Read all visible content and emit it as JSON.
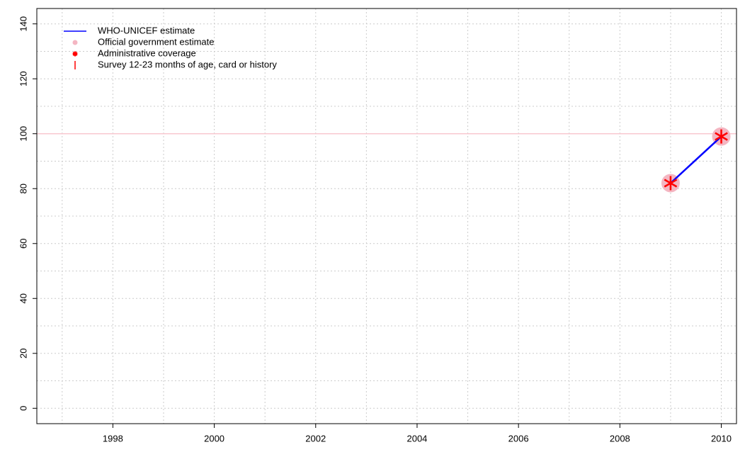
{
  "chart_data": {
    "type": "line",
    "x": [
      2009,
      2010
    ],
    "series": [
      {
        "name": "WHO-UNICEF estimate",
        "color": "#0000ff",
        "marker": "line",
        "values": [
          82,
          99
        ]
      },
      {
        "name": "Official government estimate",
        "color": "#f4b6c2",
        "marker": "circle",
        "values": [
          82,
          99
        ]
      },
      {
        "name": "Administrative coverage",
        "color": "#ff0000",
        "marker": "asterisk",
        "values": [
          82,
          99
        ]
      },
      {
        "name": "Survey 12-23 months of age, card or history",
        "color": "#ff0000",
        "marker": "bar",
        "values": [
          null,
          null
        ]
      }
    ],
    "hline": {
      "value": 100,
      "color": "#f8c8d0"
    },
    "xlim": [
      1996.5,
      2010.3
    ],
    "xticks": [
      1998,
      2000,
      2002,
      2004,
      2006,
      2008,
      2010
    ],
    "ylim": [
      -5.6,
      145.6
    ],
    "yticks": [
      0,
      20,
      40,
      60,
      80,
      100,
      120,
      140
    ],
    "x_gridlines": [
      1997,
      1998,
      1999,
      2000,
      2001,
      2002,
      2003,
      2004,
      2005,
      2006,
      2007,
      2008,
      2009,
      2010
    ],
    "y_gridlines": [
      0,
      10,
      20,
      30,
      40,
      50,
      60,
      70,
      80,
      90,
      100,
      110,
      120,
      130,
      140
    ],
    "legend": "top-left"
  }
}
